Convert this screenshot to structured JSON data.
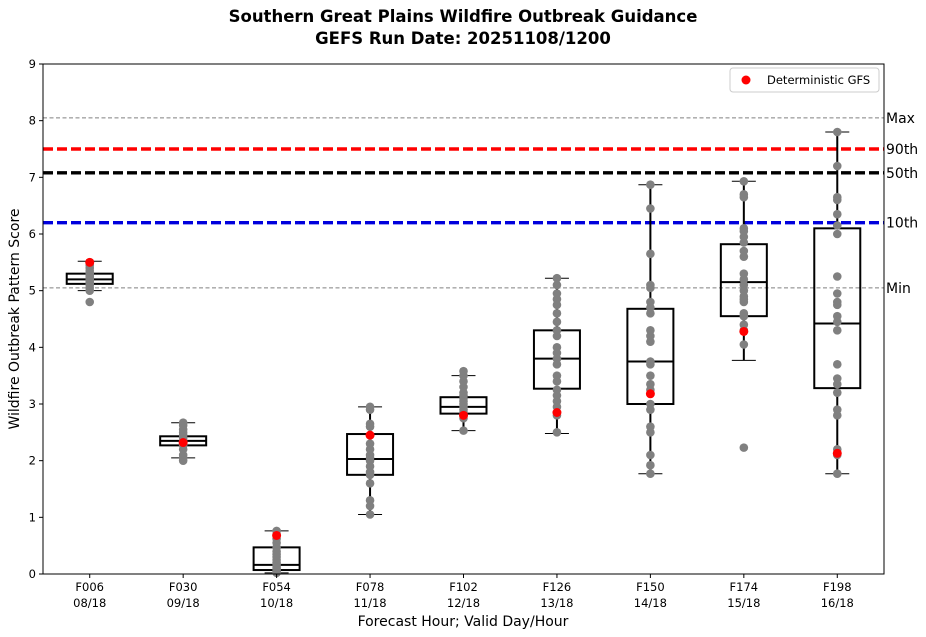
{
  "chart_data": {
    "type": "box",
    "title": "Southern Great Plains Wildfire Outbreak Guidance",
    "subtitle": "GEFS Run Date: 20251108/1200",
    "xlabel": "Forecast Hour; Valid Day/Hour",
    "ylabel": "Wildfire Outbreak Pattern Score",
    "ylim": [
      0,
      9
    ],
    "yticks": [
      "0",
      "1",
      "2",
      "3",
      "4",
      "5",
      "6",
      "7",
      "8",
      "9"
    ],
    "categories": [
      {
        "hour": "F006",
        "valid": "08/18"
      },
      {
        "hour": "F030",
        "valid": "09/18"
      },
      {
        "hour": "F054",
        "valid": "10/18"
      },
      {
        "hour": "F078",
        "valid": "11/18"
      },
      {
        "hour": "F102",
        "valid": "12/18"
      },
      {
        "hour": "F126",
        "valid": "13/18"
      },
      {
        "hour": "F150",
        "valid": "14/18"
      },
      {
        "hour": "F174",
        "valid": "15/18"
      },
      {
        "hour": "F198",
        "valid": "16/18"
      }
    ],
    "boxes": [
      {
        "whisker_low": 5.0,
        "q1": 5.12,
        "median": 5.2,
        "q3": 5.3,
        "whisker_high": 5.52
      },
      {
        "whisker_low": 2.05,
        "q1": 2.27,
        "median": 2.35,
        "q3": 2.43,
        "whisker_high": 2.67
      },
      {
        "whisker_low": 0.02,
        "q1": 0.07,
        "median": 0.16,
        "q3": 0.47,
        "whisker_high": 0.76
      },
      {
        "whisker_low": 1.05,
        "q1": 1.75,
        "median": 2.03,
        "q3": 2.47,
        "whisker_high": 2.95
      },
      {
        "whisker_low": 2.53,
        "q1": 2.83,
        "median": 2.95,
        "q3": 3.12,
        "whisker_high": 3.5
      },
      {
        "whisker_low": 2.48,
        "q1": 3.27,
        "median": 3.8,
        "q3": 4.3,
        "whisker_high": 5.22
      },
      {
        "whisker_low": 1.77,
        "q1": 3.0,
        "median": 3.75,
        "q3": 4.68,
        "whisker_high": 6.87
      },
      {
        "whisker_low": 3.77,
        "q1": 4.55,
        "median": 5.15,
        "q3": 5.82,
        "whisker_high": 6.93
      },
      {
        "whisker_low": 1.77,
        "q1": 3.28,
        "median": 4.42,
        "q3": 6.1,
        "whisker_high": 7.8
      }
    ],
    "members": [
      [
        4.8,
        5.0,
        5.05,
        5.1,
        5.12,
        5.15,
        5.18,
        5.2,
        5.22,
        5.25,
        5.28,
        5.3,
        5.35,
        5.4,
        5.45,
        5.5
      ],
      [
        2.0,
        2.05,
        2.1,
        2.2,
        2.27,
        2.3,
        2.35,
        2.4,
        2.45,
        2.5,
        2.55,
        2.62,
        2.67
      ],
      [
        0.02,
        0.05,
        0.08,
        0.12,
        0.16,
        0.2,
        0.25,
        0.3,
        0.35,
        0.4,
        0.47,
        0.55,
        0.62,
        0.7,
        0.76
      ],
      [
        1.05,
        1.2,
        1.3,
        1.6,
        1.75,
        1.8,
        1.9,
        2.0,
        2.05,
        2.1,
        2.2,
        2.3,
        2.45,
        2.6,
        2.65,
        2.9,
        2.95
      ],
      [
        2.53,
        2.75,
        2.8,
        2.85,
        2.9,
        2.95,
        3.0,
        3.05,
        3.1,
        3.15,
        3.2,
        3.3,
        3.4,
        3.5,
        3.58
      ],
      [
        2.5,
        2.8,
        2.95,
        3.05,
        3.15,
        3.25,
        3.4,
        3.5,
        3.7,
        3.8,
        3.9,
        4.0,
        4.2,
        4.3,
        4.45,
        4.6,
        4.75,
        4.85,
        4.95,
        5.1,
        5.22
      ],
      [
        1.77,
        1.92,
        2.1,
        2.5,
        2.6,
        2.9,
        3.0,
        3.25,
        3.35,
        3.5,
        3.7,
        3.75,
        4.1,
        4.2,
        4.3,
        4.6,
        4.7,
        4.8,
        5.05,
        5.1,
        5.65,
        6.45,
        6.87
      ],
      [
        2.23,
        4.05,
        4.3,
        4.4,
        4.55,
        4.6,
        4.8,
        4.85,
        4.9,
        5.0,
        5.1,
        5.2,
        5.3,
        5.6,
        5.7,
        5.85,
        5.95,
        6.05,
        6.1,
        6.65,
        6.7,
        6.93
      ],
      [
        1.77,
        2.1,
        2.2,
        2.8,
        2.9,
        3.2,
        3.35,
        3.45,
        3.7,
        4.3,
        4.45,
        4.55,
        4.75,
        4.8,
        4.95,
        5.25,
        6.0,
        6.15,
        6.35,
        6.6,
        6.65,
        7.2,
        7.8
      ]
    ],
    "deterministic_gfs": [
      5.5,
      2.32,
      0.68,
      2.45,
      2.8,
      2.85,
      3.18,
      4.28,
      2.13
    ],
    "reference_lines": [
      {
        "label": "Max",
        "value": 8.05,
        "color": "#808080",
        "style": "thin-dashed"
      },
      {
        "label": "90th",
        "value": 7.5,
        "color": "#ff0000",
        "style": "thick-dashed"
      },
      {
        "label": "50th",
        "value": 7.08,
        "color": "#000000",
        "style": "thick-dashed"
      },
      {
        "label": "10th",
        "value": 6.2,
        "color": "#0000dd",
        "style": "thick-dashed"
      },
      {
        "label": "Min",
        "value": 5.05,
        "color": "#808080",
        "style": "thin-dashed"
      }
    ],
    "legend": {
      "label": "Deterministic GFS",
      "position": "top-right",
      "marker_color": "#ff0000"
    },
    "colors": {
      "member": "#808080",
      "deterministic": "#ff0000",
      "box": "#000000"
    }
  }
}
